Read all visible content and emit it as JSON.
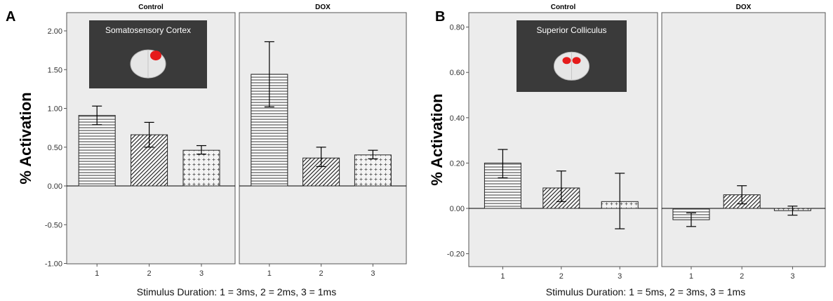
{
  "chart_data": [
    {
      "type": "bar",
      "panel_label": "A",
      "ylabel": "% Activation",
      "xlabel": "Stimulus Duration: 1 = 3ms, 2 = 2ms, 3 = 1ms",
      "ylim": [
        -1.0,
        2.1
      ],
      "yticks": [
        "2.00",
        "1.50",
        "1.00",
        "0.50",
        "0.00",
        "-0.50",
        "-1.00"
      ],
      "ytick_values": [
        2.0,
        1.5,
        1.0,
        0.5,
        0.0,
        -0.5,
        -1.0
      ],
      "categories": [
        "1",
        "2",
        "3"
      ],
      "inset_label": "Somatosensory Cortex",
      "groups": [
        {
          "name": "Control",
          "values": [
            0.91,
            0.66,
            0.46
          ],
          "err_low": [
            0.79,
            0.5,
            0.41
          ],
          "err_high": [
            1.03,
            0.82,
            0.52
          ]
        },
        {
          "name": "DOX",
          "values": [
            1.44,
            0.36,
            0.4
          ],
          "err_low": [
            1.02,
            0.25,
            0.35
          ],
          "err_high": [
            1.86,
            0.5,
            0.46
          ]
        }
      ]
    },
    {
      "type": "bar",
      "panel_label": "B",
      "ylabel": "% Activation",
      "xlabel": "Stimulus Duration: 1 = 5ms, 2 = 3ms, 3 = 1ms",
      "ylim": [
        -0.24,
        0.82
      ],
      "yticks": [
        "0.80",
        "0.60",
        "0.40",
        "0.20",
        "0.00",
        "-0.20"
      ],
      "ytick_values": [
        0.8,
        0.6,
        0.4,
        0.2,
        0.0,
        -0.2
      ],
      "categories": [
        "1",
        "2",
        "3"
      ],
      "inset_label": "Superior Colliculus",
      "groups": [
        {
          "name": "Control",
          "values": [
            0.2,
            0.09,
            0.03
          ],
          "err_low": [
            0.135,
            0.03,
            -0.09
          ],
          "err_high": [
            0.26,
            0.165,
            0.155
          ]
        },
        {
          "name": "DOX",
          "values": [
            -0.05,
            0.06,
            -0.01
          ],
          "err_low": [
            -0.08,
            0.02,
            -0.03
          ],
          "err_high": [
            -0.02,
            0.1,
            0.01
          ]
        }
      ]
    }
  ]
}
